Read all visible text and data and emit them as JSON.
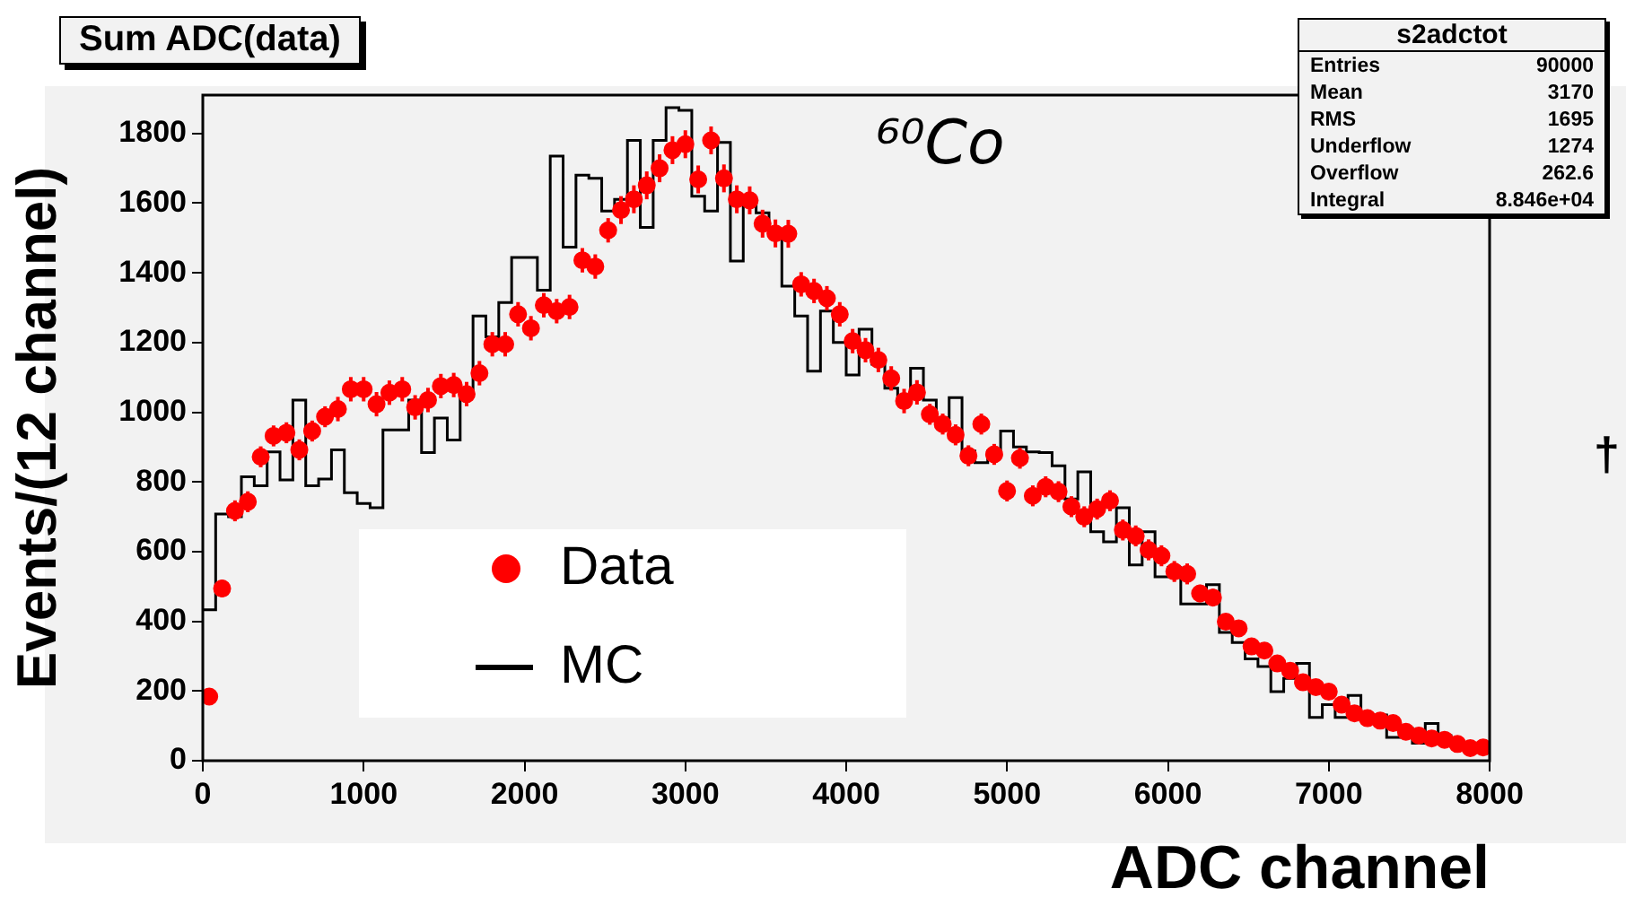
{
  "chart_data": {
    "type": "histogram",
    "title": "Sum ADC(data)",
    "xlabel": "ADC channel",
    "ylabel": "Events/(12 channel)",
    "xlim": [
      0,
      8000
    ],
    "xticks": [
      0,
      1000,
      2000,
      3000,
      4000,
      5000,
      6000,
      7000,
      8000
    ],
    "ylim": [
      0,
      1910
    ],
    "yticks": [
      0,
      200,
      400,
      600,
      800,
      1000,
      1200,
      1400,
      1600,
      1800
    ],
    "legend": "bottom left",
    "bins": [
      0,
      80,
      160,
      240,
      320,
      400,
      480,
      560,
      640,
      720,
      800,
      880,
      960,
      1040,
      1120,
      1200,
      1280,
      1360,
      1440,
      1520,
      1600,
      1680,
      1760,
      1840,
      1920,
      2000,
      2080,
      2160,
      2240,
      2320,
      2400,
      2480,
      2560,
      2640,
      2720,
      2800,
      2880,
      2960,
      3040,
      3120,
      3200,
      3280,
      3360,
      3440,
      3520,
      3600,
      3680,
      3760,
      3840,
      3920,
      4000,
      4080,
      4160,
      4240,
      4320,
      4400,
      4480,
      4560,
      4640,
      4720,
      4800,
      4880,
      4960,
      5040,
      5120,
      5200,
      5280,
      5360,
      5440,
      5520,
      5600,
      5680,
      5760,
      5840,
      5920,
      6000,
      6080,
      6160,
      6240,
      6320,
      6400,
      6480,
      6560,
      6640,
      6720,
      6800,
      6880,
      6960,
      7040,
      7120,
      7200,
      7280,
      7360,
      7440,
      7520,
      7600,
      7680,
      7760,
      7840,
      7920,
      8000
    ],
    "series": [
      {
        "name": "Data",
        "type": "scatter",
        "color": "#ff0000",
        "marker": "circle",
        "x": [
          40,
          120,
          200,
          280,
          360,
          440,
          520,
          600,
          680,
          760,
          840,
          920,
          1000,
          1080,
          1160,
          1240,
          1320,
          1400,
          1480,
          1560,
          1640,
          1720,
          1800,
          1880,
          1960,
          2040,
          2120,
          2200,
          2280,
          2360,
          2440,
          2520,
          2600,
          2680,
          2760,
          2840,
          2920,
          3000,
          3080,
          3160,
          3240,
          3320,
          3400,
          3480,
          3560,
          3640,
          3720,
          3800,
          3880,
          3960,
          4040,
          4120,
          4200,
          4280,
          4360,
          4440,
          4520,
          4600,
          4680,
          4760,
          4840,
          4920,
          5000,
          5080,
          5160,
          5240,
          5320,
          5400,
          5480,
          5560,
          5640,
          5720,
          5800,
          5880,
          5960,
          6040,
          6120,
          6200,
          6280,
          6360,
          6440,
          6520,
          6600,
          6680,
          6760,
          6840,
          6920,
          7000,
          7080,
          7160,
          7240,
          7320,
          7400,
          7480,
          7560,
          7640,
          7720,
          7800,
          7880,
          7960
        ],
        "values": [
          184,
          494,
          717,
          743,
          872,
          932,
          941,
          892,
          946,
          987,
          1009,
          1066,
          1066,
          1023,
          1056,
          1066,
          1014,
          1035,
          1075,
          1078,
          1052,
          1112,
          1195,
          1195,
          1281,
          1241,
          1307,
          1290,
          1302,
          1436,
          1418,
          1522,
          1580,
          1611,
          1651,
          1700,
          1752,
          1769,
          1668,
          1780,
          1671,
          1611,
          1608,
          1541,
          1513,
          1512,
          1367,
          1348,
          1327,
          1281,
          1204,
          1178,
          1150,
          1097,
          1032,
          1057,
          994,
          966,
          935,
          875,
          966,
          879,
          774,
          868,
          760,
          786,
          772,
          729,
          700,
          722,
          746,
          662,
          645,
          605,
          588,
          543,
          536,
          480,
          468,
          399,
          380,
          328,
          316,
          279,
          258,
          225,
          211,
          198,
          161,
          136,
          122,
          115,
          108,
          83,
          72,
          64,
          60,
          48,
          36,
          38
        ],
        "errors": [
          15,
          25,
          30,
          30,
          30,
          30,
          30,
          30,
          30,
          30,
          35,
          35,
          35,
          35,
          35,
          35,
          35,
          35,
          35,
          35,
          35,
          35,
          35,
          35,
          35,
          35,
          35,
          35,
          35,
          35,
          35,
          35,
          40,
          40,
          40,
          40,
          40,
          40,
          40,
          40,
          40,
          40,
          40,
          40,
          40,
          40,
          35,
          35,
          35,
          35,
          35,
          35,
          35,
          35,
          35,
          35,
          30,
          30,
          30,
          30,
          30,
          30,
          30,
          30,
          30,
          30,
          30,
          30,
          30,
          30,
          30,
          30,
          30,
          30,
          30,
          30,
          30,
          25,
          25,
          20,
          20,
          20,
          20,
          20,
          20,
          15,
          15,
          15,
          15,
          15,
          15,
          15,
          15,
          10,
          10,
          10,
          10,
          10,
          10,
          10
        ]
      },
      {
        "name": "MC",
        "type": "histogram",
        "color": "#000000",
        "values": [
          433,
          708,
          700,
          815,
          789,
          886,
          806,
          1035,
          789,
          808,
          892,
          769,
          738,
          726,
          949,
          949,
          1035,
          884,
          983,
          920,
          1064,
          1276,
          1216,
          1315,
          1444,
          1444,
          1350,
          1735,
          1474,
          1680,
          1671,
          1577,
          1611,
          1780,
          1530,
          1780,
          1874,
          1866,
          1620,
          1577,
          1774,
          1434,
          1608,
          1572,
          1516,
          1362,
          1276,
          1118,
          1290,
          1200,
          1107,
          1238,
          1138,
          1069,
          1035,
          1126,
          1035,
          983,
          1042,
          889,
          855,
          889,
          946,
          900,
          886,
          884,
          846,
          751,
          829,
          657,
          628,
          726,
          562,
          657,
          528,
          554,
          450,
          450,
          505,
          368,
          339,
          292,
          270,
          198,
          236,
          279,
          124,
          161,
          124,
          187,
          131,
          131,
          67,
          93,
          50,
          107,
          72,
          46,
          46,
          38
        ]
      }
    ],
    "annotations": [
      "⁶⁰Co",
      "s2adctot",
      "Entries 90000",
      "Mean 3170",
      "RMS 1695",
      "Underflow 1274",
      "Overflow 262.6",
      "Integral 8.846e+04",
      "†"
    ]
  }
}
